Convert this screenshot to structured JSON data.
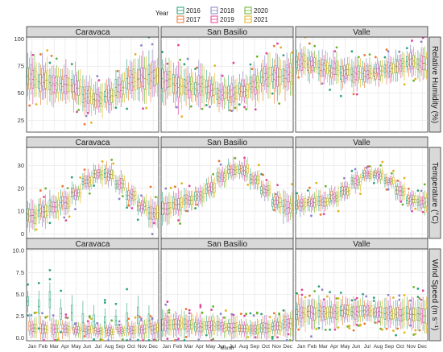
{
  "legend": {
    "title": "Year",
    "items": [
      {
        "label": "2016",
        "color": "#2aa27b"
      },
      {
        "label": "2017",
        "color": "#e8772e"
      },
      {
        "label": "2018",
        "color": "#8a84c8"
      },
      {
        "label": "2019",
        "color": "#e0459a"
      },
      {
        "label": "2020",
        "color": "#6ab32c"
      },
      {
        "label": "2021",
        "color": "#e3b21c"
      }
    ]
  },
  "sites": [
    "Caravaca",
    "San Basilio",
    "Valle"
  ],
  "months": [
    "Jan",
    "Feb",
    "Mar",
    "Apr",
    "May",
    "Jun",
    "Jul",
    "Aug",
    "Sep",
    "Oct",
    "Nov",
    "Dec"
  ],
  "xlabel": "Month",
  "chart_data": {
    "type": "box",
    "facet_columns": [
      "Caravaca",
      "San Basilio",
      "Valle"
    ],
    "facet_rows": [
      {
        "label": "Relative Humidity (%)",
        "ylim": [
          14,
          102
        ],
        "yticks": [
          25,
          50,
          75,
          100
        ],
        "ytick_labels": [
          "25",
          "50",
          "75",
          "100"
        ],
        "monthly_median": {
          "Caravaca": [
            65,
            62,
            58,
            58,
            55,
            48,
            45,
            48,
            55,
            62,
            64,
            66
          ],
          "San Basilio": [
            62,
            58,
            56,
            56,
            54,
            50,
            50,
            53,
            58,
            65,
            66,
            66
          ],
          "Valle": [
            78,
            76,
            74,
            72,
            70,
            68,
            68,
            70,
            72,
            76,
            79,
            78
          ]
        },
        "monthly_iqr": {
          "Caravaca": [
            14,
            14,
            13,
            13,
            12,
            11,
            10,
            10,
            12,
            13,
            14,
            14
          ],
          "San Basilio": [
            13,
            13,
            12,
            12,
            11,
            10,
            10,
            10,
            11,
            12,
            13,
            13
          ],
          "Valle": [
            9,
            9,
            9,
            9,
            9,
            9,
            8,
            8,
            8,
            9,
            9,
            9
          ]
        }
      },
      {
        "label": "Temperature (°C)",
        "ylim": [
          -2,
          38
        ],
        "yticks": [
          0,
          10,
          20,
          30
        ],
        "ytick_labels": [
          "0",
          "10",
          "20",
          "30"
        ],
        "monthly_median": {
          "Caravaca": [
            8,
            10,
            12,
            14,
            18,
            23,
            26,
            26,
            22,
            17,
            12,
            9
          ],
          "San Basilio": [
            11,
            13,
            15,
            17,
            20,
            25,
            28,
            28,
            24,
            19,
            14,
            12
          ],
          "Valle": [
            13,
            14,
            14,
            16,
            19,
            23,
            26,
            26,
            23,
            19,
            15,
            14
          ]
        },
        "monthly_iqr": {
          "Caravaca": [
            4,
            4,
            4,
            4,
            3,
            3,
            3,
            3,
            3,
            3,
            3,
            4
          ],
          "San Basilio": [
            4,
            4,
            3,
            3,
            3,
            3,
            3,
            3,
            3,
            3,
            3,
            4
          ],
          "Valle": [
            3,
            3,
            3,
            3,
            3,
            3,
            2,
            2,
            2,
            3,
            3,
            3
          ]
        }
      },
      {
        "label": "Wind Speed (m s⁻¹)",
        "ylim": [
          -0.3,
          10.2
        ],
        "yticks": [
          0.0,
          2.5,
          5.0,
          7.5,
          10.0
        ],
        "ytick_labels": [
          "0.0",
          "2.5",
          "5.0",
          "7.5",
          "10.0"
        ],
        "monthly_median": {
          "Caravaca": [
            1.2,
            1.0,
            1.1,
            1.0,
            0.9,
            0.9,
            0.8,
            0.8,
            0.8,
            0.9,
            1.0,
            1.1
          ],
          "San Basilio": [
            1.6,
            1.6,
            1.5,
            1.4,
            1.4,
            1.3,
            1.2,
            1.1,
            1.1,
            1.2,
            1.4,
            1.6
          ],
          "Valle": [
            2.8,
            2.9,
            3.0,
            3.0,
            3.1,
            3.0,
            3.0,
            2.9,
            2.8,
            2.7,
            2.7,
            2.7
          ]
        },
        "monthly_iqr": {
          "Caravaca": [
            0.8,
            0.8,
            0.8,
            0.7,
            0.6,
            0.6,
            0.5,
            0.5,
            0.5,
            0.6,
            0.7,
            0.8
          ],
          "San Basilio": [
            1.0,
            1.0,
            1.0,
            0.9,
            0.9,
            0.8,
            0.8,
            0.7,
            0.7,
            0.8,
            0.9,
            1.0
          ],
          "Valle": [
            1.2,
            1.2,
            1.1,
            1.1,
            1.0,
            1.0,
            1.0,
            1.0,
            1.0,
            1.0,
            1.1,
            1.2
          ]
        }
      }
    ],
    "year_offsets": {
      "row0": [
        0,
        -2,
        2,
        -1,
        1,
        0
      ],
      "row1": [
        0,
        0.5,
        -0.5,
        0.3,
        -0.3,
        0.2
      ],
      "row2": [
        0,
        0.1,
        -0.1,
        0.05,
        -0.05,
        0.0
      ]
    },
    "caravaca_2016_wind_median": [
      4.2,
      3.6,
      4.4,
      2.8,
      2.9,
      1.8,
      1.9,
      1.8,
      2.0,
      2.0,
      2.6,
      2.0
    ],
    "grid": true,
    "legend_position": "top-center"
  }
}
